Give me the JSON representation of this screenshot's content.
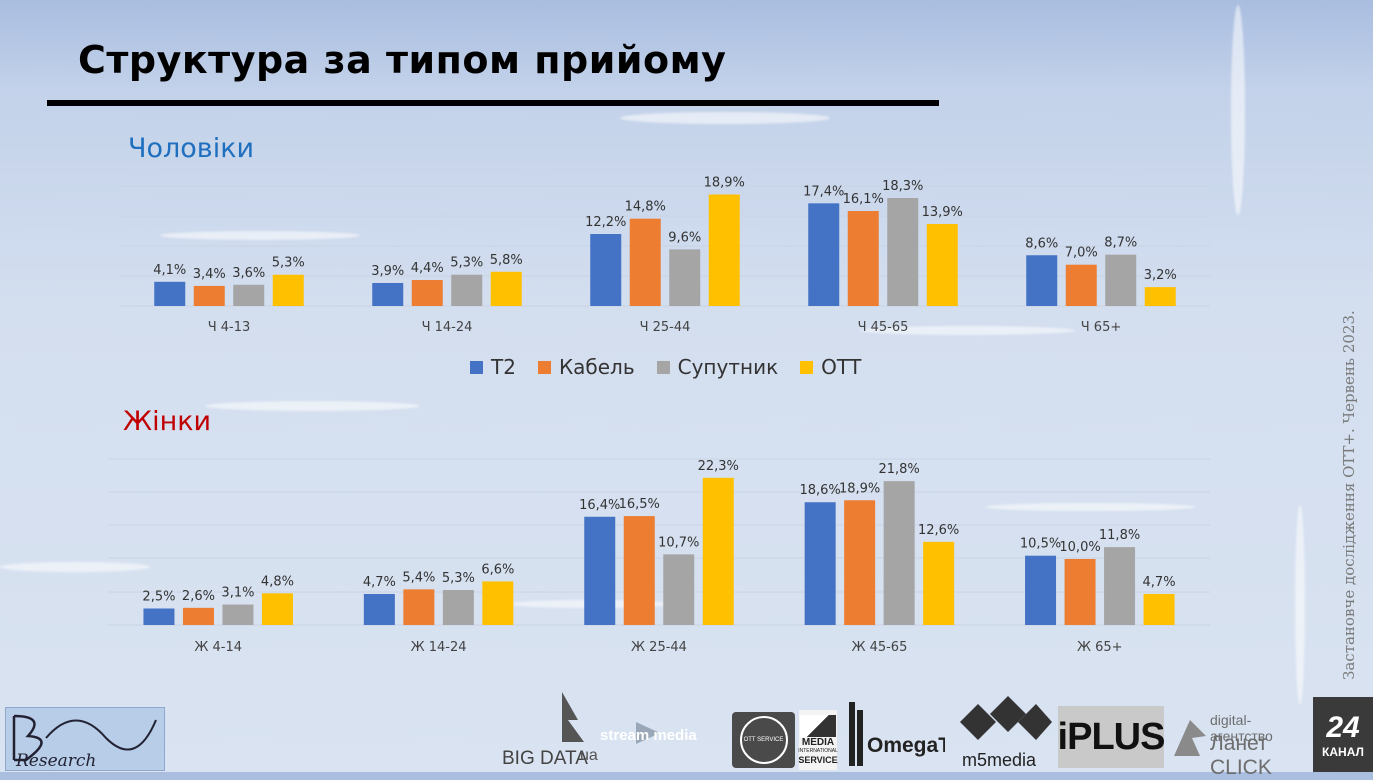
{
  "slide": {
    "title": "Структура за типом прийому",
    "side_note": "Застановче дослідження ОТТ+.    Червень  2023."
  },
  "colors": {
    "T2": "#4472c4",
    "Кабель": "#ed7d31",
    "Супутник": "#a5a5a5",
    "OTT": "#ffc000",
    "men_label": "#1f6fbf",
    "women_label": "#c00000"
  },
  "legend": [
    "Т2",
    "Кабель",
    "Супутник",
    "ОТТ"
  ],
  "chart_data": [
    {
      "type": "bar",
      "title": "Чоловіки",
      "categories": [
        "Ч 4-13",
        "Ч 14-24",
        "Ч 25-44",
        "Ч 45-65",
        "Ч 65+"
      ],
      "series": [
        {
          "name": "Т2",
          "values": [
            4.1,
            3.9,
            12.2,
            17.4,
            8.6
          ],
          "labels": [
            "4,1%",
            "3,9%",
            "12,2%",
            "17,4%",
            "8,6%"
          ]
        },
        {
          "name": "Кабель",
          "values": [
            3.4,
            4.4,
            14.8,
            16.1,
            7.0
          ],
          "labels": [
            "3,4%",
            "4,4%",
            "14,8%",
            "16,1%",
            "7,0%"
          ]
        },
        {
          "name": "Супутник",
          "values": [
            3.6,
            5.3,
            9.6,
            18.3,
            8.7
          ],
          "labels": [
            "3,6%",
            "5,3%",
            "9,6%",
            "18,3%",
            "8,7%"
          ]
        },
        {
          "name": "ОТТ",
          "values": [
            5.3,
            5.8,
            18.9,
            13.9,
            3.2
          ],
          "labels": [
            "5,3%",
            "5,8%",
            "18,9%",
            "13,9%",
            "3,2%"
          ]
        }
      ],
      "ylim": [
        0,
        20
      ],
      "unit": "%"
    },
    {
      "type": "bar",
      "title": "Жінки",
      "categories": [
        "Ж 4-14",
        "Ж 14-24",
        "Ж 25-44",
        "Ж 45-65",
        "Ж 65+"
      ],
      "series": [
        {
          "name": "Т2",
          "values": [
            2.5,
            4.7,
            16.4,
            18.6,
            10.5
          ],
          "labels": [
            "2,5%",
            "4,7%",
            "16,4%",
            "18,6%",
            "10,5%"
          ]
        },
        {
          "name": "Кабель",
          "values": [
            2.6,
            5.4,
            16.5,
            18.9,
            10.0
          ],
          "labels": [
            "2,6%",
            "5,4%",
            "16,5%",
            "18,9%",
            "10,0%"
          ]
        },
        {
          "name": "Супутник",
          "values": [
            3.1,
            5.3,
            10.7,
            21.8,
            11.8
          ],
          "labels": [
            "3,1%",
            "5,3%",
            "10,7%",
            "21,8%",
            "11,8%"
          ]
        },
        {
          "name": "ОТТ",
          "values": [
            4.8,
            6.6,
            22.3,
            12.6,
            4.7
          ],
          "labels": [
            "4,8%",
            "6,6%",
            "22,3%",
            "12,6%",
            "4,7%"
          ]
        }
      ],
      "ylim": [
        0,
        25
      ],
      "unit": "%"
    }
  ],
  "logos": {
    "research": "Research",
    "bigdata": "BIG DATA",
    "bigdata_suffix": "ua",
    "streammedia": "stream media",
    "ottservice": "OTT SERVICE",
    "mis_1": "MEDIA",
    "mis_2": "INTERNATIONAL",
    "mis_3": "SERVICE",
    "omegatv": "OmegaTV",
    "m5": "m5media",
    "iplus": "iPLUS",
    "lanet_1": "digital-агентство",
    "lanet_2": "Ланет CLICK",
    "kanal_num": "24",
    "kanal_word": "КАНАЛ"
  }
}
